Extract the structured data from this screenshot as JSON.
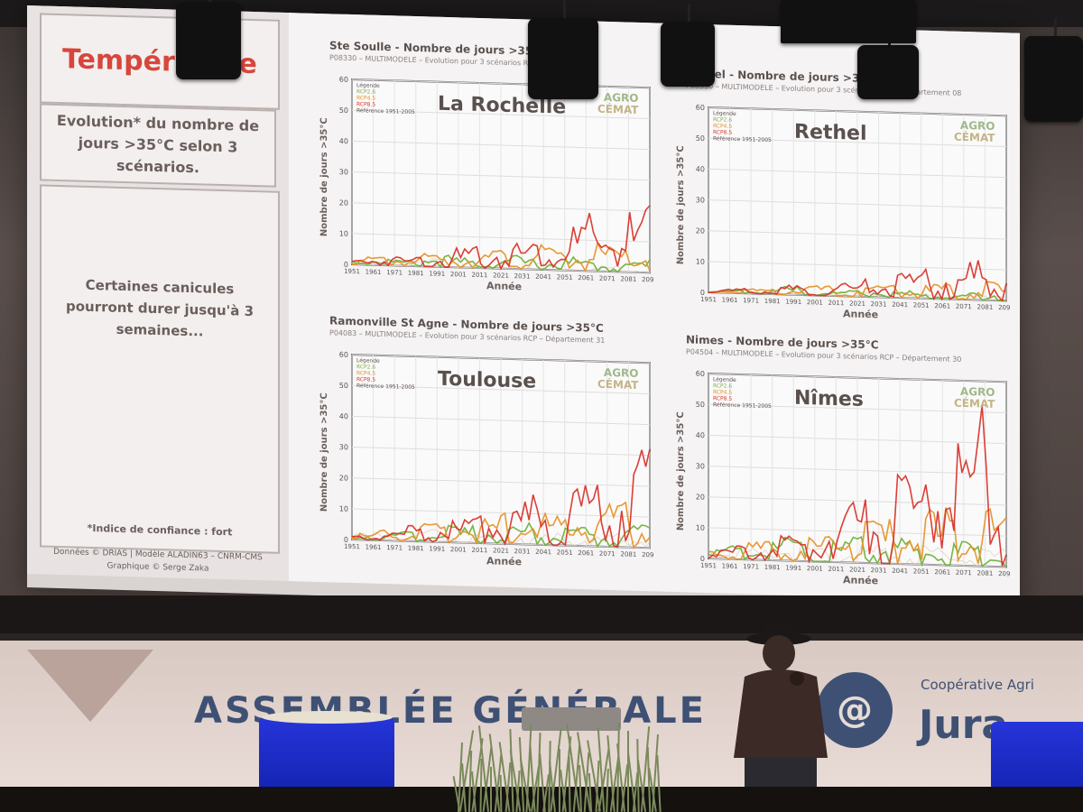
{
  "slide": {
    "title": "Température",
    "subtitle": "Evolution* du nombre de jours >35°C selon 3 scénarios.",
    "quote": "Certaines canicules pourront durer jusqu'à 3 semaines...",
    "footnote": "*Indice de confiance : fort",
    "credit_line1": "Données © DRIAS | Modèle ALADIN63 – CNRM-CMS",
    "credit_line2": "Graphique © Serge Zaka",
    "x_axis_label": "Année",
    "y_axis_label": "Nombre de jours >35°C",
    "brand_top": "AGRO",
    "brand_bottom": "CÉMAT",
    "legend_title": "Légende",
    "legend_items": [
      "Référence 1951-2005",
      "RCP2.6",
      "RCP4.5",
      "RCP8.5"
    ],
    "year_ticks": [
      "1951",
      "1961",
      "1971",
      "1981",
      "1991",
      "2001",
      "2011",
      "2021",
      "2031",
      "2041",
      "2051",
      "2061",
      "2071",
      "2081",
      "2091"
    ],
    "y_ticks": [
      "0",
      "10",
      "20",
      "30",
      "40",
      "50",
      "60"
    ]
  },
  "chart_data": [
    {
      "type": "line",
      "title": "Ste Soulle - Nombre de jours >35°C",
      "subtitle": "P08330 – MULTIMODELE – Evolution pour 3 scénarios RCP",
      "city": "La Rochelle",
      "xlabel": "Année",
      "ylabel": "Nombre de jours >35°C",
      "ylim": [
        0,
        60
      ],
      "xlim": [
        1951,
        2100
      ],
      "series": [
        {
          "name": "Référence 1951-2005",
          "values": [
            0,
            1,
            0,
            2,
            1,
            0,
            1,
            2,
            0,
            1,
            2,
            1
          ]
        },
        {
          "name": "RCP2.6",
          "values": [
            1,
            2,
            1,
            3,
            2,
            2,
            3,
            2,
            3,
            2,
            2,
            3
          ]
        },
        {
          "name": "RCP4.5",
          "values": [
            1,
            2,
            2,
            3,
            3,
            4,
            4,
            5,
            5,
            6,
            5,
            6
          ]
        },
        {
          "name": "RCP8.5",
          "values": [
            1,
            2,
            2,
            3,
            4,
            5,
            6,
            8,
            10,
            12,
            13,
            14
          ]
        }
      ]
    },
    {
      "type": "line",
      "title": "Rethel - Nombre de jours >35°C",
      "subtitle": "P08350 – MULTIMODELE – Evolution pour 3 scénarios RCP – Département 08",
      "city": "Rethel",
      "xlabel": "Année",
      "ylabel": "Nombre de jours >35°C",
      "ylim": [
        0,
        60
      ],
      "xlim": [
        1951,
        2100
      ],
      "series": [
        {
          "name": "Référence 1951-2005",
          "values": [
            0,
            1,
            0,
            1,
            0,
            1,
            1,
            0,
            1,
            0,
            1,
            1
          ]
        },
        {
          "name": "RCP2.6",
          "values": [
            0,
            1,
            1,
            2,
            1,
            1,
            2,
            1,
            2,
            1,
            2,
            2
          ]
        },
        {
          "name": "RCP4.5",
          "values": [
            0,
            1,
            1,
            2,
            2,
            2,
            3,
            3,
            3,
            4,
            4,
            4
          ]
        },
        {
          "name": "RCP8.5",
          "values": [
            0,
            1,
            1,
            2,
            2,
            3,
            4,
            5,
            6,
            7,
            8,
            9
          ]
        }
      ]
    },
    {
      "type": "line",
      "title": "Ramonville St Agne - Nombre de jours >35°C",
      "subtitle": "P04083 – MULTIMODELE – Evolution pour 3 scénarios RCP – Département 31",
      "city": "Toulouse",
      "xlabel": "Année",
      "ylabel": "Nombre de jours >35°C",
      "ylim": [
        0,
        60
      ],
      "xlim": [
        1951,
        2100
      ],
      "series": [
        {
          "name": "Référence 1951-2005",
          "values": [
            1,
            2,
            1,
            3,
            2,
            2,
            3,
            2,
            3,
            2,
            3,
            3
          ]
        },
        {
          "name": "RCP2.6",
          "values": [
            1,
            2,
            2,
            4,
            3,
            4,
            5,
            4,
            5,
            4,
            5,
            5
          ]
        },
        {
          "name": "RCP4.5",
          "values": [
            1,
            2,
            3,
            4,
            5,
            6,
            7,
            8,
            9,
            10,
            9,
            10
          ]
        },
        {
          "name": "RCP8.5",
          "values": [
            1,
            2,
            3,
            4,
            5,
            7,
            9,
            11,
            14,
            17,
            19,
            21
          ]
        }
      ]
    },
    {
      "type": "line",
      "title": "Nimes - Nombre de jours >35°C",
      "subtitle": "P04504 – MULTIMODELE – Evolution pour 3 scénarios RCP – Département 30",
      "city": "Nîmes",
      "xlabel": "Année",
      "ylabel": "Nombre de jours >35°C",
      "ylim": [
        0,
        60
      ],
      "xlim": [
        1951,
        2100
      ],
      "series": [
        {
          "name": "Référence 1951-2005",
          "values": [
            2,
            3,
            2,
            4,
            3,
            3,
            4,
            3,
            4,
            3,
            4,
            4
          ]
        },
        {
          "name": "RCP2.6",
          "values": [
            2,
            3,
            3,
            5,
            4,
            5,
            6,
            5,
            6,
            5,
            6,
            6
          ]
        },
        {
          "name": "RCP4.5",
          "values": [
            2,
            3,
            4,
            5,
            6,
            8,
            9,
            10,
            11,
            12,
            11,
            12
          ]
        },
        {
          "name": "RCP8.5",
          "values": [
            2,
            3,
            4,
            6,
            8,
            11,
            14,
            18,
            23,
            28,
            33,
            36
          ]
        }
      ]
    }
  ],
  "banner": {
    "text": "ASSEMBLÉE GÉNÉRALE",
    "coop_text": "Coopérative Agri",
    "brand": "Jura",
    "logo_glyph": "@",
    "accent": "#3e5174"
  },
  "colors": {
    "reference": "#d8c2b4",
    "rcp26": "#6fb23a",
    "rcp45": "#e5932a",
    "rcp85": "#d8352c",
    "title_red": "#d7463c",
    "table_blue": "#1a2bd0"
  }
}
